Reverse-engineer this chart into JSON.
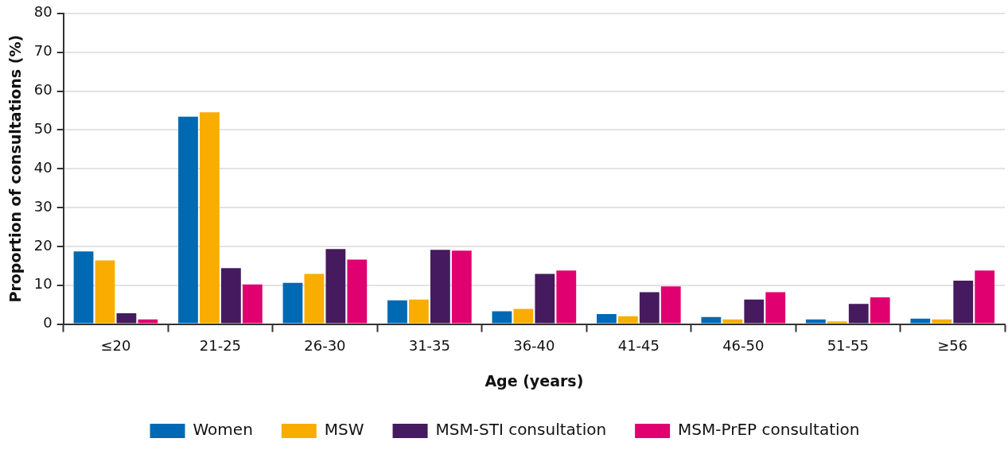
{
  "chart_data": {
    "type": "bar",
    "xlabel": "Age (years)",
    "ylabel": "Proportion of consultations (%)",
    "categories": [
      "≤20",
      "21-25",
      "26-30",
      "31-35",
      "36-40",
      "41-45",
      "46-50",
      "51-55",
      "≥56"
    ],
    "series": [
      {
        "name": "Women",
        "color": "#0069b4",
        "values": [
          18.7,
          53.4,
          10.6,
          6.1,
          3.3,
          2.6,
          1.8,
          1.2,
          1.4
        ]
      },
      {
        "name": "MSW",
        "color": "#f9ad00",
        "values": [
          16.4,
          54.5,
          12.9,
          6.3,
          3.9,
          2.0,
          1.2,
          0.7,
          1.2
        ]
      },
      {
        "name": "MSM-STI consultation",
        "color": "#451a5e",
        "values": [
          2.8,
          14.4,
          19.3,
          19.1,
          12.9,
          8.2,
          6.3,
          5.2,
          11.2
        ]
      },
      {
        "name": "MSM-PrEP consultation",
        "color": "#e0006f",
        "values": [
          1.2,
          10.2,
          16.6,
          18.9,
          13.8,
          9.7,
          8.2,
          6.9,
          13.8
        ]
      }
    ],
    "ylim": [
      0,
      80
    ],
    "yticks": [
      0,
      10,
      20,
      30,
      40,
      50,
      60,
      70,
      80
    ],
    "grid": "y",
    "legend": "bottom"
  }
}
